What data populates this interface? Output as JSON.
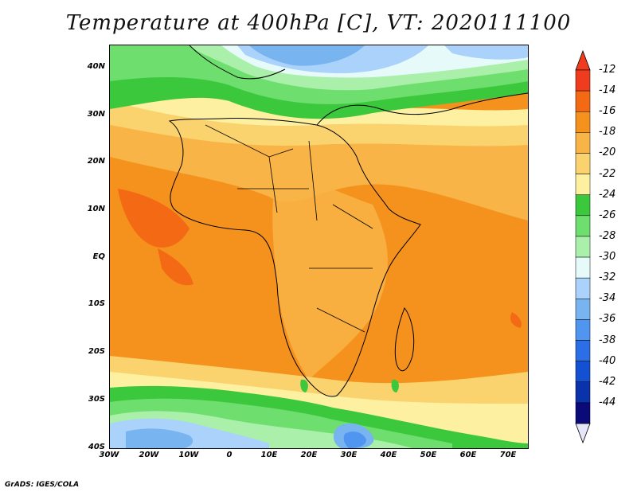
{
  "title": "Temperature at 400hPa [C], VT: 2020111100",
  "credit": "GrADS: IGES/COLA",
  "lat_labels": [
    "40N",
    "30N",
    "20N",
    "10N",
    "EQ",
    "10S",
    "20S",
    "30S",
    "40S"
  ],
  "lon_labels": [
    "30W",
    "20W",
    "10W",
    "0",
    "10E",
    "20E",
    "30E",
    "40E",
    "50E",
    "60E",
    "70E"
  ],
  "colorbar": {
    "labels": [
      "-12",
      "-14",
      "-16",
      "-18",
      "-20",
      "-22",
      "-24",
      "-26",
      "-28",
      "-30",
      "-32",
      "-34",
      "-36",
      "-38",
      "-40",
      "-42",
      "-44"
    ],
    "colors": [
      "#f03c1e",
      "#f46a14",
      "#f5921e",
      "#f8b446",
      "#fad26e",
      "#fdf0a0",
      "#3cc83c",
      "#6ede6e",
      "#aaf0aa",
      "#e6fafa",
      "#aad2fa",
      "#78b4f0",
      "#5096f0",
      "#2c6ee6",
      "#1450d2",
      "#0a32aa",
      "#0a0a78"
    ],
    "over_color": "#f03c1e",
    "under_color": "#e6e6fa"
  }
}
